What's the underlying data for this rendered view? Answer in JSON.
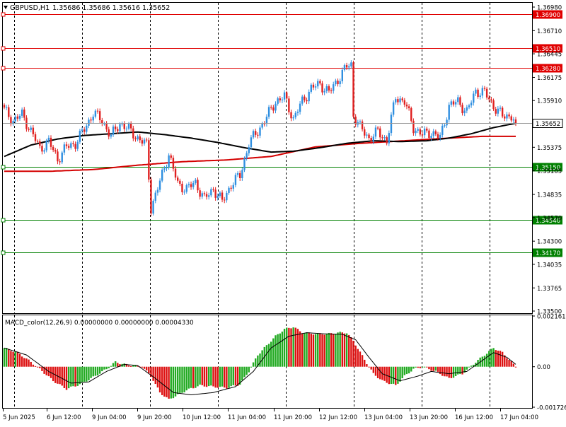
{
  "header": {
    "symbol": "GBPUSD,H1",
    "ohlc": "1.35686 1.35686 1.35616 1.35652"
  },
  "macd_header": "MACD_color(12,26,9) 0.00000000 0.00000000 0.00004330",
  "colors": {
    "background": "#ffffff",
    "frame": "#000000",
    "grid": "#000000",
    "bull": "#2f8fe0",
    "bear": "#e02020",
    "ma_slow": "#d40000",
    "ma_fast": "#000000",
    "resistance": "#e00000",
    "support": "#008000",
    "macd_pos": "#22aa22",
    "macd_neg": "#dd1111",
    "signal": "#000000",
    "price_tag": "#ffffff"
  },
  "chart_data": [
    {
      "type": "candlestick",
      "symbol": "GBPUSD",
      "timeframe": "H1",
      "ylim": [
        1.335,
        1.3698
      ],
      "y_ticks": [
        "1.36980",
        "1.36710",
        "1.36445",
        "1.36175",
        "1.35910",
        "1.35375",
        "1.35105",
        "1.34835",
        "1.34570",
        "1.34300",
        "1.34035",
        "1.33765",
        "1.33500"
      ],
      "x_ticks": [
        "5 Jun 2025",
        "6 Jun 12:00",
        "9 Jun 04:00",
        "9 Jun 20:00",
        "10 Jun 12:00",
        "11 Jun 04:00",
        "11 Jun 20:00",
        "12 Jun 12:00",
        "13 Jun 04:00",
        "13 Jun 20:00",
        "16 Jun 12:00",
        "17 Jun 04:00"
      ],
      "current_price": "1.35652",
      "current_price_value": 1.35652,
      "levels": [
        {
          "label": "1.36900",
          "value": 1.369,
          "kind": "resistance"
        },
        {
          "label": "1.36510",
          "value": 1.3651,
          "kind": "resistance"
        },
        {
          "label": "1.36280",
          "value": 1.3628,
          "kind": "resistance"
        },
        {
          "label": "1.35150",
          "value": 1.3515,
          "kind": "support"
        },
        {
          "label": "1.34540",
          "value": 1.3454,
          "kind": "support"
        },
        {
          "label": "1.34170",
          "value": 1.3417,
          "kind": "support"
        }
      ],
      "close_waypoints": [
        [
          0,
          1.358
        ],
        [
          4,
          1.3568
        ],
        [
          8,
          1.3575
        ],
        [
          12,
          1.3556
        ],
        [
          16,
          1.3536
        ],
        [
          20,
          1.3544
        ],
        [
          24,
          1.3524
        ],
        [
          28,
          1.3538
        ],
        [
          32,
          1.3542
        ],
        [
          36,
          1.3558
        ],
        [
          40,
          1.3577
        ],
        [
          44,
          1.3568
        ],
        [
          48,
          1.355
        ],
        [
          52,
          1.3565
        ],
        [
          56,
          1.3558
        ],
        [
          60,
          1.3548
        ],
        [
          64,
          1.354
        ],
        [
          66,
          1.3468
        ],
        [
          70,
          1.3498
        ],
        [
          74,
          1.353
        ],
        [
          78,
          1.3495
        ],
        [
          82,
          1.349
        ],
        [
          86,
          1.3497
        ],
        [
          90,
          1.3478
        ],
        [
          94,
          1.349
        ],
        [
          98,
          1.3475
        ],
        [
          102,
          1.3495
        ],
        [
          106,
          1.3505
        ],
        [
          110,
          1.3542
        ],
        [
          114,
          1.3556
        ],
        [
          118,
          1.3572
        ],
        [
          122,
          1.359
        ],
        [
          126,
          1.3595
        ],
        [
          130,
          1.357
        ],
        [
          134,
          1.359
        ],
        [
          138,
          1.3605
        ],
        [
          142,
          1.361
        ],
        [
          146,
          1.36
        ],
        [
          150,
          1.3615
        ],
        [
          154,
          1.363
        ],
        [
          156,
          1.3632
        ],
        [
          157,
          1.3575
        ],
        [
          160,
          1.356
        ],
        [
          164,
          1.3548
        ],
        [
          168,
          1.3555
        ],
        [
          172,
          1.3545
        ],
        [
          176,
          1.3595
        ],
        [
          180,
          1.359
        ],
        [
          184,
          1.356
        ],
        [
          188,
          1.3552
        ],
        [
          192,
          1.3555
        ],
        [
          196,
          1.3548
        ],
        [
          200,
          1.3585
        ],
        [
          204,
          1.359
        ],
        [
          208,
          1.3578
        ],
        [
          212,
          1.3602
        ],
        [
          216,
          1.36
        ],
        [
          220,
          1.3585
        ],
        [
          224,
          1.3573
        ],
        [
          228,
          1.3574
        ],
        [
          230,
          1.3565
        ]
      ],
      "ma_fast_waypoints": [
        [
          0,
          1.3527
        ],
        [
          12,
          1.354
        ],
        [
          24,
          1.3547
        ],
        [
          36,
          1.3551
        ],
        [
          48,
          1.3553
        ],
        [
          60,
          1.3555
        ],
        [
          72,
          1.3552
        ],
        [
          84,
          1.3548
        ],
        [
          96,
          1.3543
        ],
        [
          108,
          1.3537
        ],
        [
          120,
          1.3532
        ],
        [
          130,
          1.3533
        ],
        [
          142,
          1.3537
        ],
        [
          154,
          1.3542
        ],
        [
          166,
          1.3545
        ],
        [
          178,
          1.3544
        ],
        [
          190,
          1.3545
        ],
        [
          200,
          1.3548
        ],
        [
          210,
          1.3553
        ],
        [
          220,
          1.356
        ],
        [
          230,
          1.3565
        ]
      ],
      "ma_slow_waypoints": [
        [
          0,
          1.351
        ],
        [
          20,
          1.351
        ],
        [
          40,
          1.3512
        ],
        [
          60,
          1.3517
        ],
        [
          80,
          1.3521
        ],
        [
          100,
          1.3523
        ],
        [
          120,
          1.3527
        ],
        [
          140,
          1.3538
        ],
        [
          160,
          1.3542
        ],
        [
          180,
          1.3545
        ],
        [
          200,
          1.3548
        ],
        [
          215,
          1.355
        ],
        [
          230,
          1.355
        ]
      ]
    },
    {
      "type": "histogram",
      "name": "MACD_color(12,26,9)",
      "ylim": [
        -0.001726,
        0.002161
      ],
      "y_ticks": [
        "0.002161",
        "0.00",
        "-0.001726"
      ],
      "bar_waypoints": [
        [
          0,
          0.0008
        ],
        [
          6,
          0.0006
        ],
        [
          12,
          0.0002
        ],
        [
          16,
          -0.0001
        ],
        [
          22,
          -0.0006
        ],
        [
          28,
          -0.00095
        ],
        [
          34,
          -0.00075
        ],
        [
          40,
          -0.00045
        ],
        [
          46,
          -0.0001
        ],
        [
          50,
          0.0002
        ],
        [
          54,
          0.0001
        ],
        [
          58,
          5e-05
        ],
        [
          62,
          0.0
        ],
        [
          66,
          -0.0004
        ],
        [
          70,
          -0.0011
        ],
        [
          74,
          -0.0014
        ],
        [
          78,
          -0.0012
        ],
        [
          82,
          -0.001
        ],
        [
          88,
          -0.0008
        ],
        [
          94,
          -0.00085
        ],
        [
          100,
          -0.0009
        ],
        [
          106,
          -0.00075
        ],
        [
          110,
          -0.0002
        ],
        [
          114,
          0.0005
        ],
        [
          118,
          0.0009
        ],
        [
          122,
          0.0013
        ],
        [
          126,
          0.0016
        ],
        [
          130,
          0.0017
        ],
        [
          134,
          0.00145
        ],
        [
          140,
          0.0014
        ],
        [
          146,
          0.0014
        ],
        [
          150,
          0.00145
        ],
        [
          154,
          0.00145
        ],
        [
          157,
          0.0011
        ],
        [
          162,
          0.0003
        ],
        [
          166,
          -0.0003
        ],
        [
          170,
          -0.0006
        ],
        [
          176,
          -0.0008
        ],
        [
          180,
          -0.0004
        ],
        [
          184,
          -0.0001
        ],
        [
          188,
          0.0
        ],
        [
          194,
          -0.0002
        ],
        [
          200,
          -0.0005
        ],
        [
          206,
          -0.0003
        ],
        [
          212,
          0.0002
        ],
        [
          216,
          0.0005
        ],
        [
          220,
          0.0008
        ],
        [
          224,
          0.0006
        ],
        [
          228,
          0.0002
        ],
        [
          230,
          0.0
        ]
      ],
      "signal_waypoints": [
        [
          0,
          0.0008
        ],
        [
          10,
          0.0005
        ],
        [
          20,
          -0.0002
        ],
        [
          30,
          -0.0007
        ],
        [
          38,
          -0.00065
        ],
        [
          46,
          -0.0002
        ],
        [
          54,
          0.0001
        ],
        [
          60,
          5e-05
        ],
        [
          68,
          -0.0005
        ],
        [
          76,
          -0.0011
        ],
        [
          84,
          -0.0012
        ],
        [
          94,
          -0.0011
        ],
        [
          104,
          -0.00085
        ],
        [
          112,
          -0.0002
        ],
        [
          120,
          0.0008
        ],
        [
          128,
          0.0013
        ],
        [
          136,
          0.00145
        ],
        [
          144,
          0.0014
        ],
        [
          152,
          0.00138
        ],
        [
          158,
          0.00115
        ],
        [
          164,
          0.0004
        ],
        [
          170,
          -0.0003
        ],
        [
          178,
          -0.0006
        ],
        [
          186,
          -0.0004
        ],
        [
          192,
          -0.0002
        ],
        [
          200,
          -0.0003
        ],
        [
          208,
          -0.0002
        ],
        [
          214,
          0.0002
        ],
        [
          220,
          0.0006
        ],
        [
          226,
          0.0004
        ],
        [
          230,
          0.0001
        ]
      ]
    }
  ]
}
